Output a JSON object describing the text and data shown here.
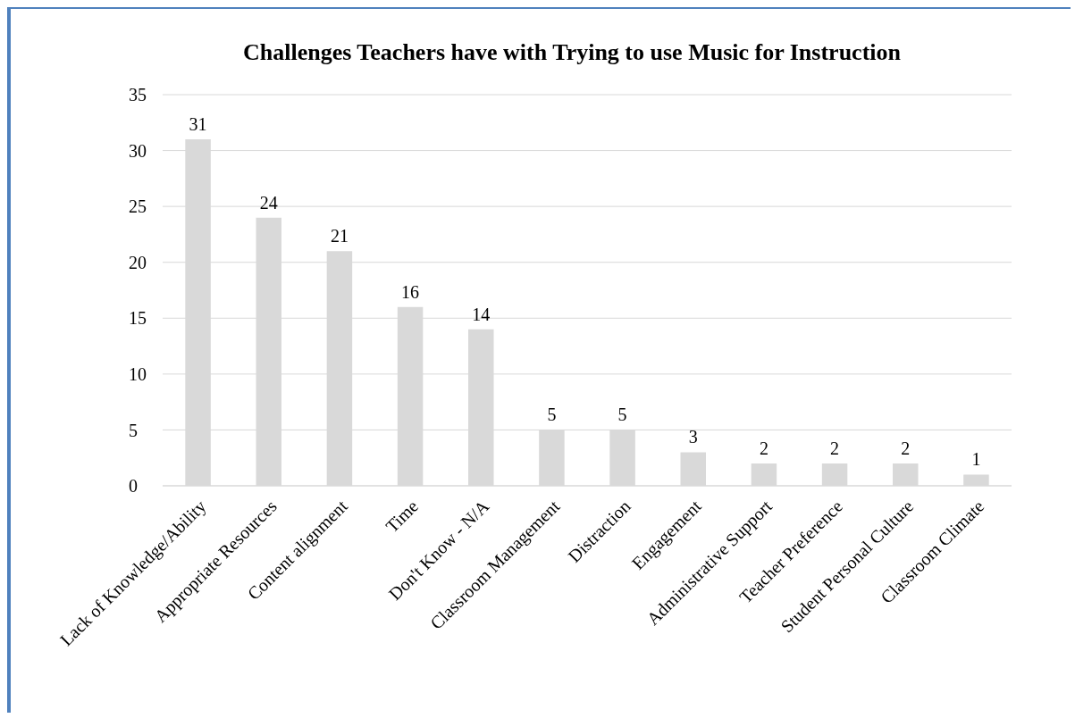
{
  "chart_data": {
    "type": "bar",
    "title": "Challenges Teachers  have with Trying to use Music for Instruction",
    "categories": [
      "Lack of Knowledge/Ability",
      "Appropriate Resources",
      "Content alignment",
      "Time",
      "Don't Know - N/A",
      "Classroom Management",
      "Distraction",
      "Engagement",
      "Administrative Support",
      "Teacher Preference",
      "Student Personal Culture",
      "Classroom Climate"
    ],
    "values": [
      31,
      24,
      21,
      16,
      14,
      5,
      5,
      3,
      2,
      2,
      2,
      1
    ],
    "color": "#d9d9d9",
    "ylim": [
      0,
      35
    ],
    "yticks": [
      0,
      5,
      10,
      15,
      20,
      25,
      30,
      35
    ],
    "grid": "y",
    "data_labels": true
  }
}
